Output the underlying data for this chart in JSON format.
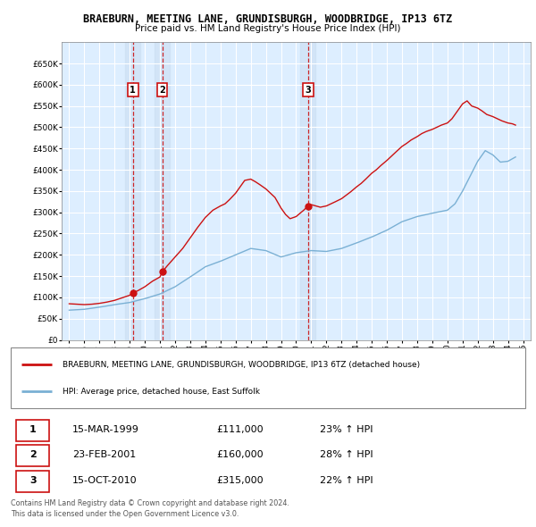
{
  "title": "BRAEBURN, MEETING LANE, GRUNDISBURGH, WOODBRIDGE, IP13 6TZ",
  "subtitle": "Price paid vs. HM Land Registry's House Price Index (HPI)",
  "legend_line1": "BRAEBURN, MEETING LANE, GRUNDISBURGH, WOODBRIDGE, IP13 6TZ (detached house)",
  "legend_line2": "HPI: Average price, detached house, East Suffolk",
  "footer1": "Contains HM Land Registry data © Crown copyright and database right 2024.",
  "footer2": "This data is licensed under the Open Government Licence v3.0.",
  "transactions": [
    {
      "num": 1,
      "date": "15-MAR-1999",
      "price": "£111,000",
      "change": "23% ↑ HPI"
    },
    {
      "num": 2,
      "date": "23-FEB-2001",
      "price": "£160,000",
      "change": "28% ↑ HPI"
    },
    {
      "num": 3,
      "date": "15-OCT-2010",
      "price": "£315,000",
      "change": "22% ↑ HPI"
    }
  ],
  "transaction_years": [
    1999.21,
    2001.15,
    2010.79
  ],
  "transaction_prices": [
    111000,
    160000,
    315000
  ],
  "hpi_color": "#7ab0d4",
  "price_color": "#cc1111",
  "background_color": "#ddeeff",
  "grid_color": "#ffffff",
  "shade_color": "#c8dcf0",
  "ylim": [
    0,
    700000
  ],
  "yticks": [
    0,
    50000,
    100000,
    150000,
    200000,
    250000,
    300000,
    350000,
    400000,
    450000,
    500000,
    550000,
    600000,
    650000
  ],
  "xmin": 1994.5,
  "xmax": 2025.5
}
